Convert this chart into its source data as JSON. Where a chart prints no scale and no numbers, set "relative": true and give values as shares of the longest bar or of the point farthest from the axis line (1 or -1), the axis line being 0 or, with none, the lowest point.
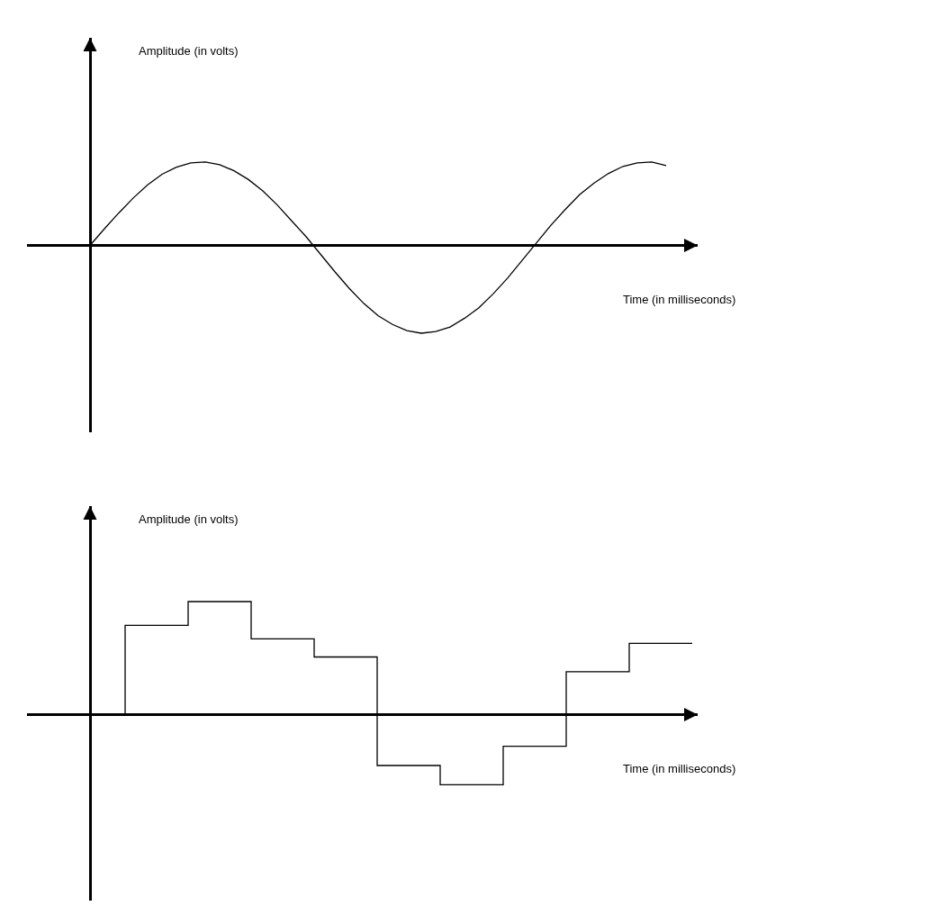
{
  "chart_data": [
    {
      "type": "line",
      "relative": true,
      "color": "#000000",
      "ylabel": "Amplitude (in volts)",
      "xlabel": "Time (in milliseconds)",
      "categories": [
        null,
        null,
        null,
        null,
        null,
        null,
        null,
        null,
        null,
        null,
        null,
        null,
        null,
        null,
        null,
        null,
        null,
        null,
        null,
        null,
        null,
        null,
        null,
        null,
        null,
        null,
        null,
        null,
        null,
        null,
        null,
        null,
        null,
        null,
        null,
        null,
        null,
        null,
        null,
        null,
        null
      ],
      "values": [
        0,
        0.19,
        0.37,
        0.54,
        0.69,
        0.81,
        0.89,
        0.94,
        0.95,
        0.92,
        0.85,
        0.75,
        0.62,
        0.46,
        0.28,
        0.1,
        -0.1,
        -0.3,
        -0.49,
        -0.66,
        -0.8,
        -0.9,
        -0.97,
        -1.0,
        -0.98,
        -0.93,
        -0.83,
        -0.71,
        -0.55,
        -0.37,
        -0.17,
        0.03,
        0.23,
        0.41,
        0.58,
        0.71,
        0.82,
        0.9,
        0.94,
        0.95,
        0.91
      ]
    },
    {
      "type": "step",
      "relative": true,
      "color": "#000000",
      "ylabel": "Amplitude (in volts)",
      "xlabel": "Time (in milliseconds)",
      "categories": [
        null,
        null,
        null,
        null,
        null,
        null,
        null,
        null,
        null,
        null
      ],
      "values": [
        0,
        0.79,
        1,
        0.67,
        0.51,
        -0.45,
        -0.62,
        -0.28,
        0.38,
        0.63
      ]
    }
  ]
}
